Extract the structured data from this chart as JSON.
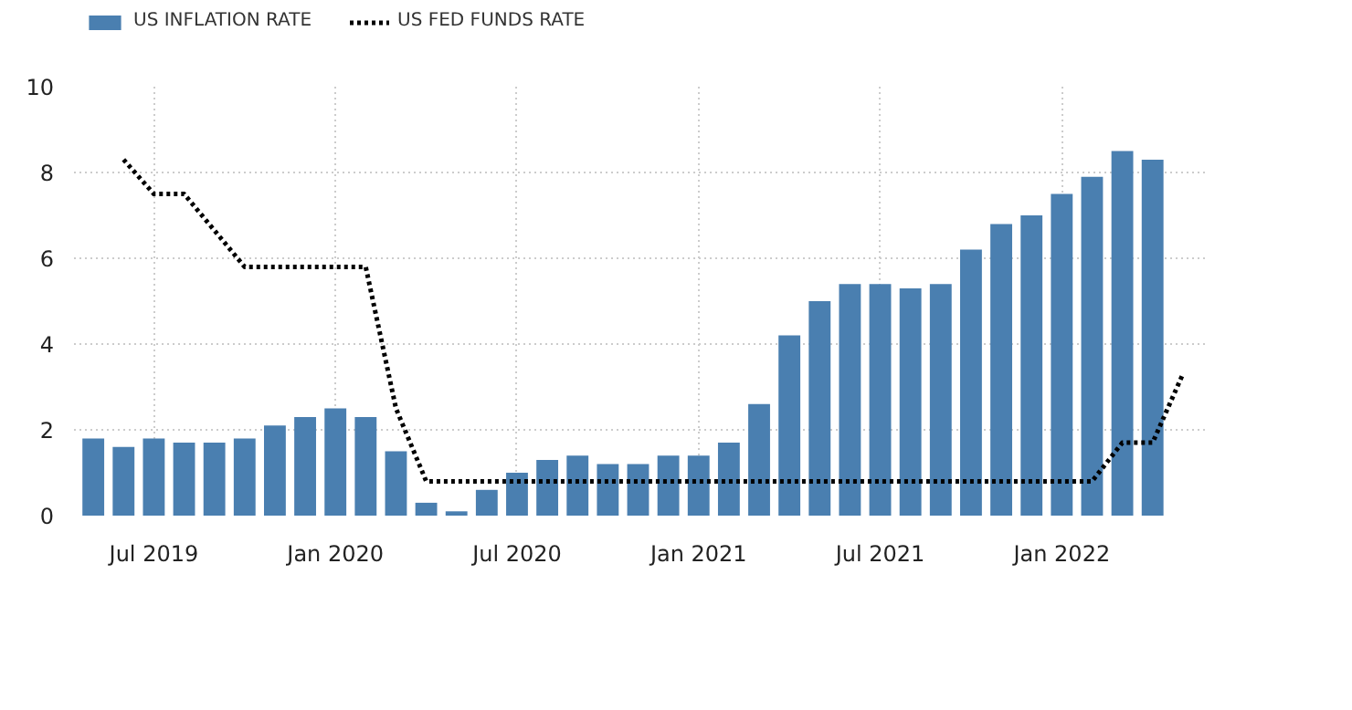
{
  "chart_data": {
    "type": "bar",
    "x": [
      "2019-05",
      "2019-06",
      "2019-07",
      "2019-08",
      "2019-09",
      "2019-10",
      "2019-11",
      "2019-12",
      "2020-01",
      "2020-02",
      "2020-03",
      "2020-04",
      "2020-05",
      "2020-06",
      "2020-07",
      "2020-08",
      "2020-09",
      "2020-10",
      "2020-11",
      "2020-12",
      "2021-01",
      "2021-02",
      "2021-03",
      "2021-04",
      "2021-05",
      "2021-06",
      "2021-07",
      "2021-08",
      "2021-09",
      "2021-10",
      "2021-11",
      "2021-12",
      "2022-01",
      "2022-02",
      "2022-03",
      "2022-04"
    ],
    "series": [
      {
        "name": "US INFLATION RATE",
        "color": "#4a7fb0",
        "values": [
          1.8,
          1.6,
          1.8,
          1.7,
          1.7,
          1.8,
          2.1,
          2.3,
          2.5,
          2.3,
          1.5,
          0.3,
          0.1,
          0.6,
          1.0,
          1.3,
          1.4,
          1.2,
          1.2,
          1.4,
          1.4,
          1.7,
          2.6,
          4.2,
          5.0,
          5.4,
          5.4,
          5.3,
          5.4,
          6.2,
          6.8,
          7.0,
          7.5,
          7.9,
          8.5,
          8.3
        ]
      },
      {
        "name": "US FED FUNDS RATE",
        "type": "line",
        "color": "#000000",
        "line_style": "dotted",
        "x": [
          "2019-06",
          "2019-07",
          "2019-08",
          "2019-10",
          "2020-02",
          "2020-03",
          "2020-04",
          "2022-02",
          "2022-03",
          "2022-04",
          "2022-05"
        ],
        "values": [
          8.3,
          7.5,
          7.5,
          5.8,
          5.8,
          2.5,
          0.8,
          0.8,
          1.7,
          1.7,
          3.3
        ]
      }
    ],
    "xlim": [
      "2019-04-12",
      "2022-05-25"
    ],
    "xticks": [
      {
        "value": "2019-07",
        "label": "Jul 2019"
      },
      {
        "value": "2020-01",
        "label": "Jan 2020"
      },
      {
        "value": "2020-07",
        "label": "Jul 2020"
      },
      {
        "value": "2021-01",
        "label": "Jan 2021"
      },
      {
        "value": "2021-07",
        "label": "Jul 2021"
      },
      {
        "value": "2022-01",
        "label": "Jan 2022"
      }
    ],
    "ylim": [
      0,
      10
    ],
    "yticks": [
      0,
      2,
      4,
      6,
      8,
      10
    ],
    "grid": true,
    "legend": "top left"
  }
}
